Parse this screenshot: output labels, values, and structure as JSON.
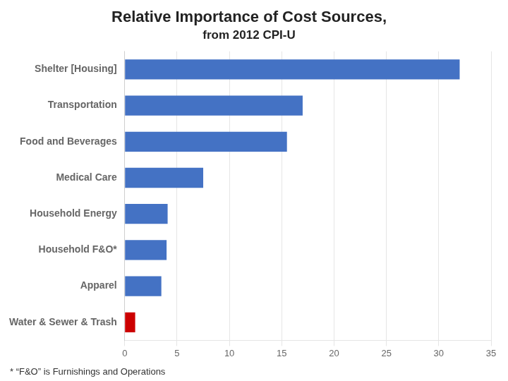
{
  "chart_data": {
    "type": "bar",
    "orientation": "horizontal",
    "title": "Relative Importance of Cost Sources,",
    "subtitle": "from 2012 CPI-U",
    "categories": [
      "Water & Sewer & Trash",
      "Apparel",
      "Household F&O*",
      "Household Energy",
      "Medical Care",
      "Food and Beverages",
      "Transportation",
      "Shelter [Housing]"
    ],
    "values": [
      1.0,
      3.5,
      4.0,
      4.1,
      7.5,
      15.5,
      17.0,
      32.0
    ],
    "colors": [
      "#cc0000",
      "#4472c4",
      "#4472c4",
      "#4472c4",
      "#4472c4",
      "#4472c4",
      "#4472c4",
      "#4472c4"
    ],
    "xlim": [
      0,
      35
    ],
    "xticks": [
      0,
      5,
      10,
      15,
      20,
      25,
      30,
      35
    ],
    "grid": true,
    "annotations": [
      "* “F&O” is Furnishings and Operations"
    ]
  }
}
